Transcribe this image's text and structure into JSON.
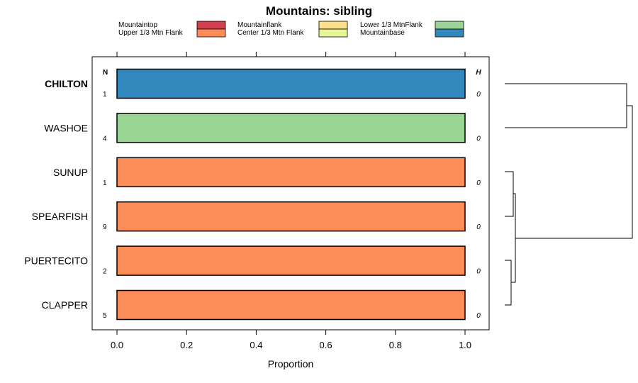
{
  "chart_data": {
    "type": "bar",
    "title": "Mountains: sibling",
    "xlabel": "Proportion",
    "ylabel": "",
    "xlim": [
      0,
      1
    ],
    "xticks": [
      "0.0",
      "0.2",
      "0.4",
      "0.6",
      "0.8",
      "1.0"
    ],
    "n_header": "N",
    "h_header": "H",
    "legend": [
      {
        "name": "Mountaintop",
        "color": "#d53e4f"
      },
      {
        "name": "Upper 1/3 Mtn Flank",
        "color": "#fc8d59"
      },
      {
        "name": "Mountainflank",
        "color": "#fee08b"
      },
      {
        "name": "Center 1/3 Mtn Flank",
        "color": "#e6f598"
      },
      {
        "name": "Lower 1/3 MtnFlank",
        "color": "#99d594"
      },
      {
        "name": "Mountainbase",
        "color": "#3288bd"
      }
    ],
    "rows": [
      {
        "label": "CHILTON",
        "bold": true,
        "n": "1",
        "h": "0",
        "segments": [
          {
            "category": "Mountainbase",
            "value": 1.0
          }
        ]
      },
      {
        "label": "WASHOE",
        "bold": false,
        "n": "4",
        "h": "0",
        "segments": [
          {
            "category": "Lower 1/3 MtnFlank",
            "value": 1.0
          }
        ]
      },
      {
        "label": "SUNUP",
        "bold": false,
        "n": "1",
        "h": "0",
        "segments": [
          {
            "category": "Upper 1/3 Mtn Flank",
            "value": 1.0
          }
        ]
      },
      {
        "label": "SPEARFISH",
        "bold": false,
        "n": "9",
        "h": "0",
        "segments": [
          {
            "category": "Upper 1/3 Mtn Flank",
            "value": 1.0
          }
        ]
      },
      {
        "label": "PUERTECITO",
        "bold": false,
        "n": "2",
        "h": "0",
        "segments": [
          {
            "category": "Upper 1/3 Mtn Flank",
            "value": 1.0
          }
        ]
      },
      {
        "label": "CLAPPER",
        "bold": false,
        "n": "5",
        "h": "0",
        "segments": [
          {
            "category": "Upper 1/3 Mtn Flank",
            "value": 1.0
          }
        ]
      }
    ]
  }
}
